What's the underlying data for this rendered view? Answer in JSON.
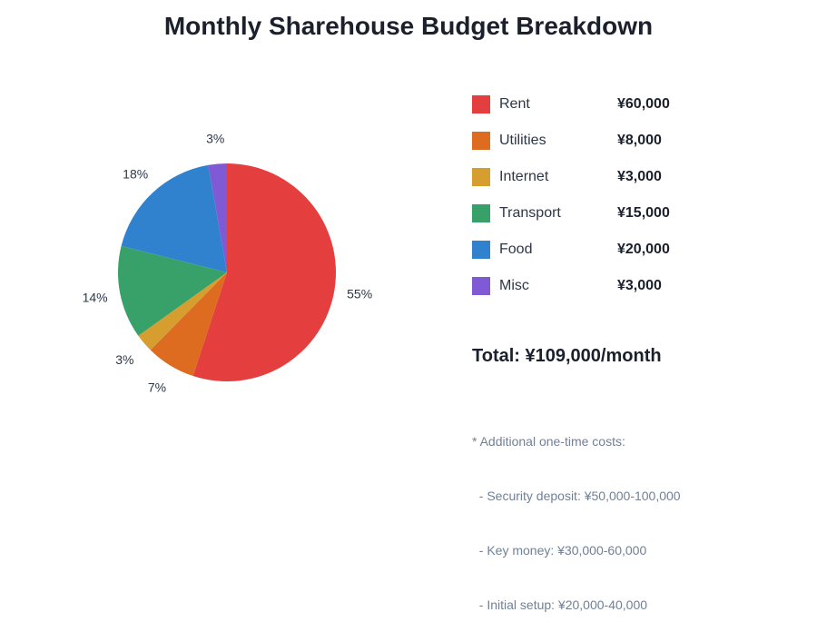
{
  "chart_data": {
    "type": "pie",
    "title": "Monthly Sharehouse Budget Breakdown",
    "start_angle": "top",
    "direction": "clockwise",
    "slices": [
      {
        "name": "Rent",
        "value": 60000,
        "value_label": "¥60,000",
        "percent_label": "55%",
        "color": "#e53e3e"
      },
      {
        "name": "Utilities",
        "value": 8000,
        "value_label": "¥8,000",
        "percent_label": "7%",
        "color": "#dd6b20"
      },
      {
        "name": "Internet",
        "value": 3000,
        "value_label": "¥3,000",
        "percent_label": "3%",
        "color": "#d69e2e"
      },
      {
        "name": "Transport",
        "value": 15000,
        "value_label": "¥15,000",
        "percent_label": "14%",
        "color": "#38a169"
      },
      {
        "name": "Food",
        "value": 20000,
        "value_label": "¥20,000",
        "percent_label": "18%",
        "color": "#3182ce"
      },
      {
        "name": "Misc",
        "value": 3000,
        "value_label": "¥3,000",
        "percent_label": "3%",
        "color": "#805ad5"
      }
    ],
    "legend": "right"
  },
  "total": "Total: ¥109,000/month",
  "notes": [
    "* Additional one-time costs:",
    "  - Security deposit: ¥50,000-100,000",
    "  - Key money: ¥30,000-60,000",
    "  - Initial setup: ¥20,000-40,000"
  ]
}
